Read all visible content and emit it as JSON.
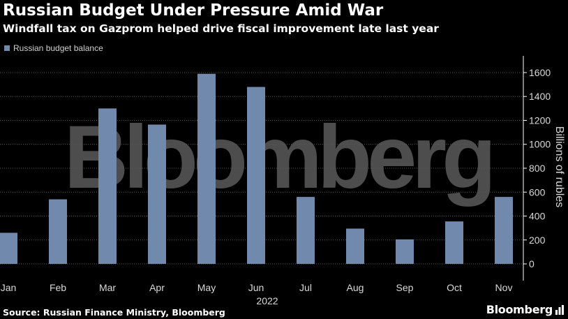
{
  "header": {
    "title": "Russian Budget Under Pressure Amid War",
    "subtitle": "Windfall tax on Gazprom helped drive fiscal improvement late last year"
  },
  "legend": {
    "label": "Russian budget balance",
    "color": "#7089ad"
  },
  "chart_data": {
    "type": "bar",
    "categories": [
      "Jan",
      "Feb",
      "Mar",
      "Apr",
      "May",
      "Jun",
      "Jul",
      "Aug",
      "Sep",
      "Oct",
      "Nov"
    ],
    "series": [
      {
        "name": "Russian budget balance",
        "values": [
          260,
          540,
          1300,
          1165,
          1590,
          1480,
          560,
          295,
          205,
          355,
          560
        ],
        "color": "#7089ad"
      }
    ],
    "xlabel": "2022",
    "ylabel": "Billions of rubles",
    "ylim": [
      -140,
      1740
    ],
    "yticks": [
      0,
      200,
      400,
      600,
      800,
      1000,
      1200,
      1400,
      1600
    ],
    "grid": true,
    "legend_position": "top-left"
  },
  "watermark": "Bloomberg",
  "footer": {
    "source": "Source: Russian Finance Ministry, Bloomberg",
    "brand": "Bloomberg"
  },
  "colors": {
    "background": "#000000",
    "bar": "#7089ad",
    "grid": "#5a5a5a",
    "tick_text": "#d9d9d9"
  }
}
